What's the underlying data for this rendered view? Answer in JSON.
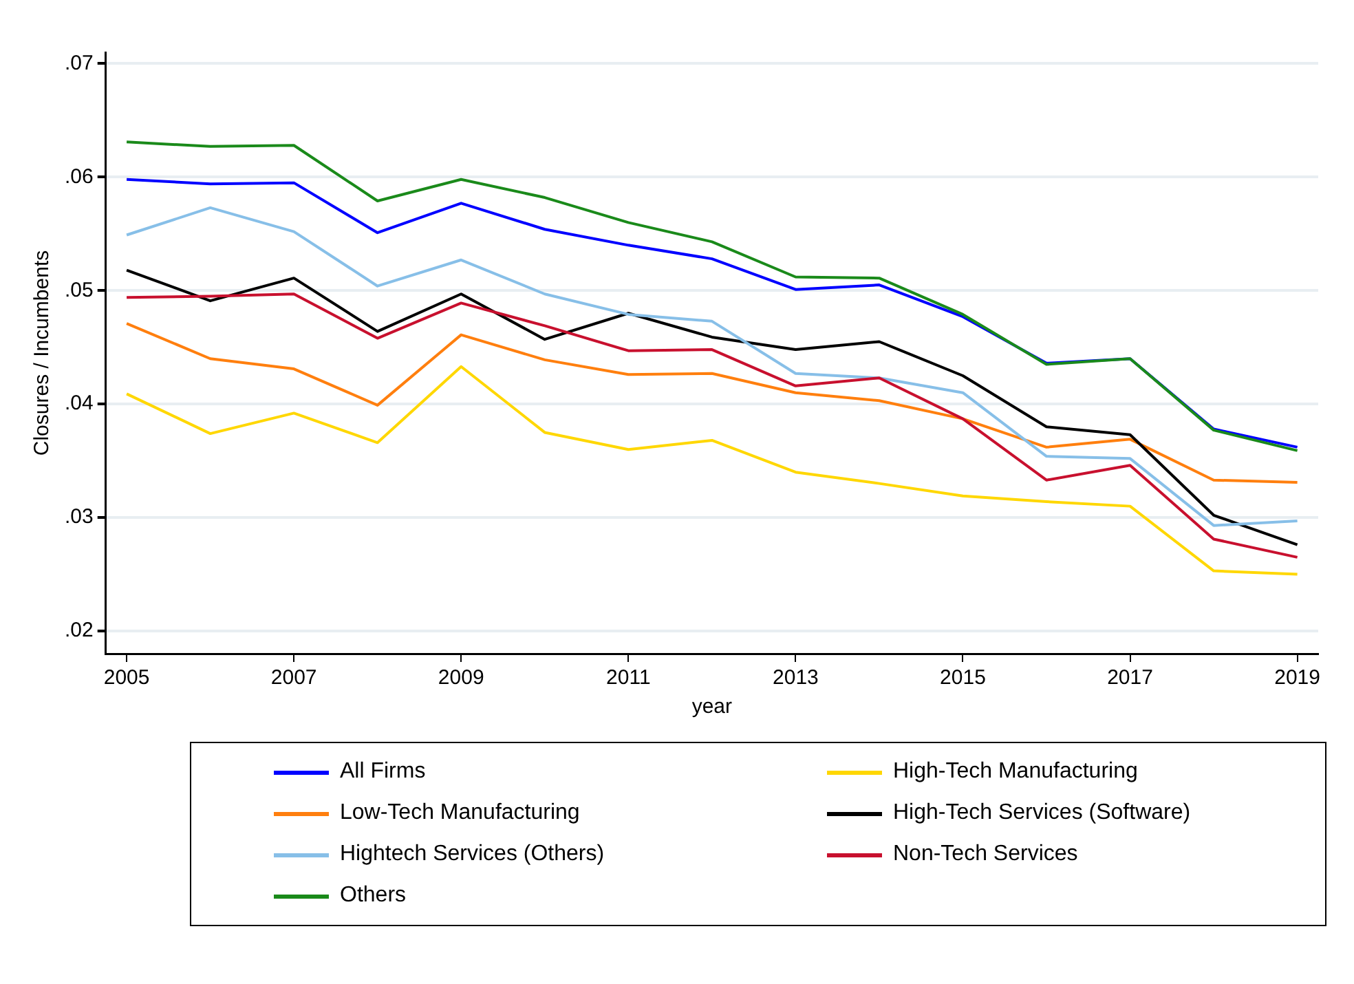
{
  "chart_data": {
    "type": "line",
    "xlabel": "year",
    "ylabel": "Closures / Incumbents",
    "x": [
      2005,
      2006,
      2007,
      2008,
      2009,
      2010,
      2011,
      2012,
      2013,
      2014,
      2015,
      2016,
      2017,
      2018,
      2019
    ],
    "xlim": [
      2004.75,
      2019.25
    ],
    "xticks": [
      2005,
      2007,
      2009,
      2011,
      2013,
      2015,
      2017,
      2019
    ],
    "ylim": [
      0.018,
      0.071
    ],
    "yticks": [
      {
        "value": 0.02,
        "label": ".02"
      },
      {
        "value": 0.03,
        "label": ".03"
      },
      {
        "value": 0.04,
        "label": ".04"
      },
      {
        "value": 0.05,
        "label": ".05"
      },
      {
        "value": 0.06,
        "label": ".06"
      },
      {
        "value": 0.07,
        "label": ".07"
      }
    ],
    "grid": "y",
    "legend": "bottom",
    "marker": "none",
    "line_style": "solid",
    "series": [
      {
        "name": "All Firms",
        "color": "#0000ff",
        "values": [
          0.0598,
          0.0594,
          0.0595,
          0.0551,
          0.0577,
          0.0554,
          0.054,
          0.0528,
          0.0501,
          0.0505,
          0.0477,
          0.0436,
          0.044,
          0.0378,
          0.0362
        ]
      },
      {
        "name": "High-Tech Manufacturing",
        "color": "#ffd700",
        "values": [
          0.0409,
          0.0374,
          0.0392,
          0.0366,
          0.0433,
          0.0375,
          0.036,
          0.0368,
          0.034,
          0.033,
          0.0319,
          0.0314,
          0.031,
          0.0253,
          0.025
        ]
      },
      {
        "name": "Low-Tech Manufacturing",
        "color": "#ff7f0e",
        "values": [
          0.0471,
          0.044,
          0.0431,
          0.0399,
          0.0461,
          0.0439,
          0.0426,
          0.0427,
          0.041,
          0.0403,
          0.0387,
          0.0362,
          0.0369,
          0.0333,
          0.0331
        ]
      },
      {
        "name": "High-Tech Services (Software)",
        "color": "#000000",
        "values": [
          0.0518,
          0.0491,
          0.0511,
          0.0464,
          0.0497,
          0.0457,
          0.048,
          0.0459,
          0.0448,
          0.0455,
          0.0425,
          0.038,
          0.0373,
          0.0302,
          0.0276
        ]
      },
      {
        "name": "Hightech Services (Others)",
        "color": "#87bfe8",
        "values": [
          0.0549,
          0.0573,
          0.0552,
          0.0504,
          0.0527,
          0.0497,
          0.0479,
          0.0473,
          0.0427,
          0.0423,
          0.041,
          0.0354,
          0.0352,
          0.0293,
          0.0297
        ]
      },
      {
        "name": "Non-Tech Services",
        "color": "#c8102e",
        "values": [
          0.0494,
          0.0495,
          0.0497,
          0.0458,
          0.0489,
          0.0469,
          0.0447,
          0.0448,
          0.0416,
          0.0423,
          0.0387,
          0.0333,
          0.0346,
          0.0281,
          0.0265
        ]
      },
      {
        "name": "Others",
        "color": "#1a8a1a",
        "values": [
          0.0631,
          0.0627,
          0.0628,
          0.0579,
          0.0598,
          0.0582,
          0.056,
          0.0543,
          0.0512,
          0.0511,
          0.0479,
          0.0435,
          0.044,
          0.0377,
          0.0359
        ]
      }
    ]
  }
}
